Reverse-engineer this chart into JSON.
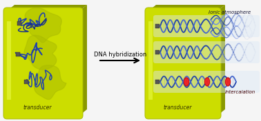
{
  "bg_color": "#f0f0f0",
  "arrow_text": "DNA hybridization",
  "label_left": "transducer",
  "label_right": "transducer",
  "label_ionic": "Ionic atmosphere",
  "label_intercalation": "intercalation",
  "panel_color": "#ccdd00",
  "panel_shadow": "#8a9900",
  "panel_edge": "#aabb00",
  "panel_highlight": "#eeff55",
  "dna_blue1": "#2244aa",
  "dna_blue2": "#4466cc",
  "dna_blue_light": "#6688ee",
  "dna_red": "#cc1111",
  "ssdna_color": "#2244aa",
  "blob_color": "#aabb00",
  "small_sq": "#555555"
}
